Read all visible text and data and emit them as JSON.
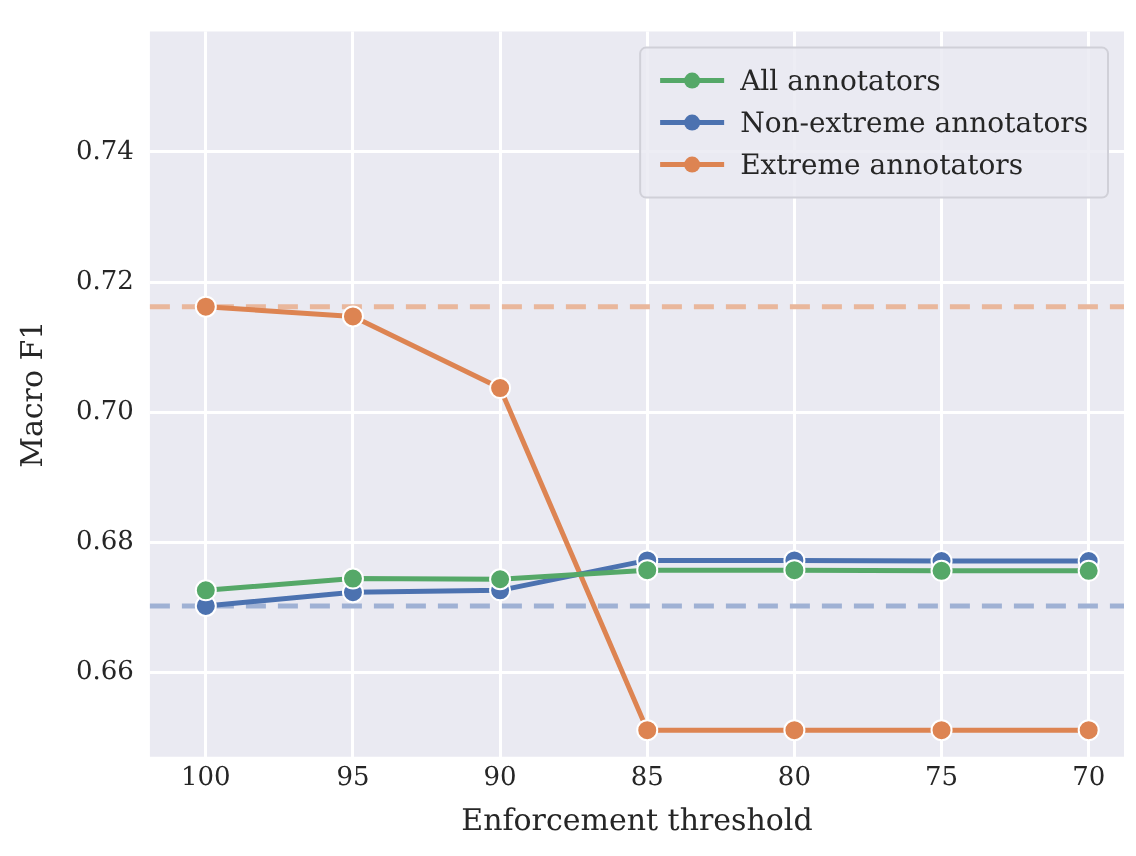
{
  "chart_data": {
    "type": "line",
    "xlabel": "Enforcement threshold",
    "ylabel": "Macro F1",
    "x": [
      100,
      95,
      90,
      85,
      80,
      75,
      70
    ],
    "xlim": [
      101.9,
      68.8
    ],
    "xticks": [
      100,
      95,
      90,
      85,
      80,
      75,
      70
    ],
    "ylim": [
      0.647,
      0.7585
    ],
    "yticks": [
      {
        "value": 0.66,
        "label": "0.66"
      },
      {
        "value": 0.68,
        "label": "0.68"
      },
      {
        "value": 0.7,
        "label": "0.70"
      },
      {
        "value": 0.72,
        "label": "0.72"
      },
      {
        "value": 0.74,
        "label": "0.74"
      }
    ],
    "series": [
      {
        "name": "All annotators",
        "color": "#55a868",
        "values": [
          0.6726,
          0.6744,
          0.6743,
          0.6757,
          0.6757,
          0.6756,
          0.6756
        ]
      },
      {
        "name": "Non-extreme annotators",
        "color": "#4c72b0",
        "values": [
          0.6702,
          0.6723,
          0.6726,
          0.6772,
          0.6772,
          0.6771,
          0.6771
        ]
      },
      {
        "name": "Extreme annotators",
        "color": "#dd8452",
        "values": [
          0.7162,
          0.7147,
          0.7037,
          0.6511,
          0.6511,
          0.6511,
          0.6511
        ]
      }
    ],
    "ref_lines": [
      {
        "axis": "y",
        "value": 0.7162,
        "color": "#e9b79c",
        "line_style": "dashed"
      },
      {
        "axis": "y",
        "value": 0.6702,
        "color": "#9fb1d4",
        "line_style": "dashed"
      }
    ],
    "grid": true,
    "legend": "top right",
    "marker": "circle",
    "line_style": "solid"
  }
}
